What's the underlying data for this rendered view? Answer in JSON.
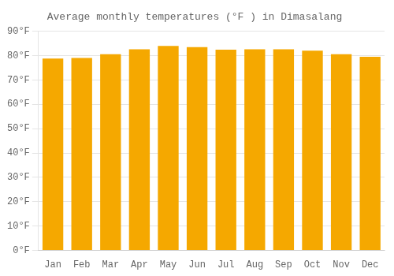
{
  "chart_data": {
    "type": "bar",
    "title": "Average monthly temperatures (°F ) in Dimasalang",
    "categories": [
      "Jan",
      "Feb",
      "Mar",
      "Apr",
      "May",
      "Jun",
      "Jul",
      "Aug",
      "Sep",
      "Oct",
      "Nov",
      "Dec"
    ],
    "values": [
      78.8,
      79.0,
      80.6,
      82.6,
      84.0,
      83.5,
      82.4,
      82.6,
      82.6,
      82.0,
      80.6,
      79.5
    ],
    "color": "#F5A800",
    "ylim": [
      0,
      90
    ],
    "yticks": [
      {
        "value": 0,
        "label": "0°F"
      },
      {
        "value": 10,
        "label": "10°F"
      },
      {
        "value": 20,
        "label": "20°F"
      },
      {
        "value": 30,
        "label": "30°F"
      },
      {
        "value": 40,
        "label": "40°F"
      },
      {
        "value": 50,
        "label": "50°F"
      },
      {
        "value": 60,
        "label": "60°F"
      },
      {
        "value": 70,
        "label": "70°F"
      },
      {
        "value": 80,
        "label": "80°F"
      },
      {
        "value": 90,
        "label": "90°F"
      }
    ],
    "grid": true
  }
}
